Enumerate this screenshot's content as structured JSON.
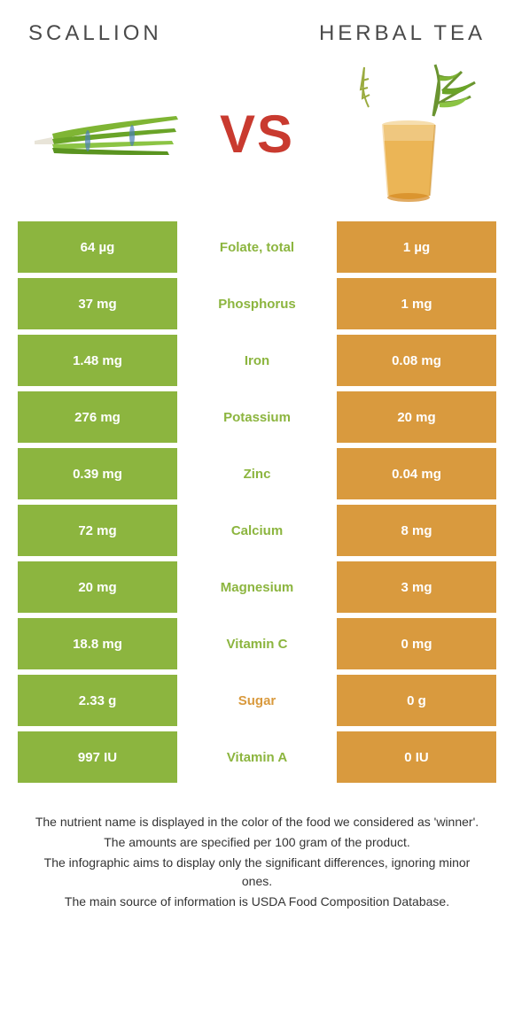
{
  "header": {
    "left": "Scallion",
    "right": "Herbal tea"
  },
  "vs_label": "VS",
  "colors": {
    "left_bg": "#8cb53f",
    "right_bg": "#d99a3e",
    "left_label": "#8cb53f",
    "right_label": "#d99a3e",
    "badge": "#c93a2f"
  },
  "rows": [
    {
      "left": "64 µg",
      "name": "Folate, total",
      "right": "1 µg",
      "winner": "left"
    },
    {
      "left": "37 mg",
      "name": "Phosphorus",
      "right": "1 mg",
      "winner": "left"
    },
    {
      "left": "1.48 mg",
      "name": "Iron",
      "right": "0.08 mg",
      "winner": "left"
    },
    {
      "left": "276 mg",
      "name": "Potassium",
      "right": "20 mg",
      "winner": "left"
    },
    {
      "left": "0.39 mg",
      "name": "Zinc",
      "right": "0.04 mg",
      "winner": "left"
    },
    {
      "left": "72 mg",
      "name": "Calcium",
      "right": "8 mg",
      "winner": "left"
    },
    {
      "left": "20 mg",
      "name": "Magnesium",
      "right": "3 mg",
      "winner": "left"
    },
    {
      "left": "18.8 mg",
      "name": "Vitamin C",
      "right": "0 mg",
      "winner": "left"
    },
    {
      "left": "2.33 g",
      "name": "Sugar",
      "right": "0 g",
      "winner": "right"
    },
    {
      "left": "997 IU",
      "name": "Vitamin A",
      "right": "0 IU",
      "winner": "left"
    }
  ],
  "footnotes": [
    "The nutrient name is displayed in the color of the food we considered as 'winner'.",
    "The amounts are specified per 100 gram of the product.",
    "The infographic aims to display only the significant differences, ignoring minor ones.",
    "The main source of information is USDA Food Composition Database."
  ]
}
